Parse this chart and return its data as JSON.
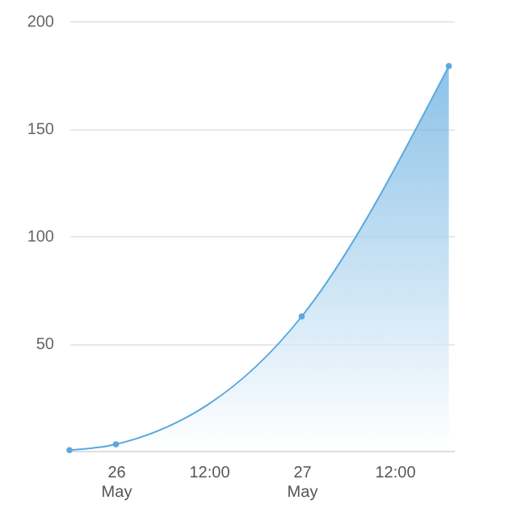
{
  "chart_data": {
    "type": "area",
    "x": [
      "--05-25T18:00",
      "--05-26T00:00",
      "--05-27T00:00",
      "--05-27T19:00"
    ],
    "series": [
      {
        "color": "#5aa8de",
        "values": [
          0.3,
          3,
          62.5,
          179
        ]
      }
    ],
    "xlim": [
      "--05-25T18:00",
      "--05-27T19:40"
    ],
    "xticks": [
      {
        "value": "--05-26T00:00",
        "label": "26 May"
      },
      {
        "value": "--05-26T12:00",
        "label": "12:00"
      },
      {
        "value": "--05-27T00:00",
        "label": "27 May"
      },
      {
        "value": "--05-27T12:00",
        "label": "12:00"
      }
    ],
    "ylim": [
      0,
      200
    ],
    "yticks": [
      50,
      100,
      150,
      200
    ],
    "grid": "y",
    "marker": "circle",
    "line_style": "solid"
  }
}
